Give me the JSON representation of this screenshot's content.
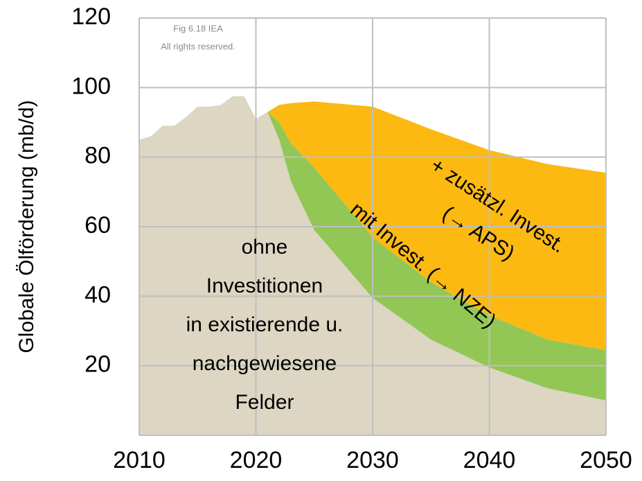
{
  "chart_data": {
    "type": "stacked_area",
    "ylabel": "Globale Ölförderung (mb/d)",
    "note": [
      "Fig 6.18 IEA",
      "All rights reserved."
    ],
    "x": [
      2010,
      2011,
      2012,
      2013,
      2014,
      2015,
      2016,
      2017,
      2018,
      2019,
      2020,
      2021,
      2022,
      2023,
      2025,
      2030,
      2035,
      2040,
      2045,
      2050
    ],
    "series": [
      {
        "name": "ohne Investitionen in existierende u. nachgewiesene Felder",
        "color": "#dcd6c2",
        "values": [
          85,
          86,
          89,
          89,
          91.5,
          94.5,
          94.5,
          95,
          97.5,
          97.5,
          91,
          93,
          85,
          73,
          59,
          39.5,
          27.5,
          19.5,
          13.5,
          10
        ]
      },
      {
        "name": "mit Invest.  (→ NZE)",
        "color": "#92c756",
        "values": [
          null,
          null,
          null,
          null,
          null,
          null,
          null,
          null,
          null,
          null,
          null,
          0,
          5,
          11,
          18,
          17.5,
          16.5,
          15,
          14,
          14.5
        ]
      },
      {
        "name": "+ zusätzl. Invest. (→ APS)",
        "color": "#fbb912",
        "values": [
          null,
          null,
          null,
          null,
          null,
          null,
          null,
          null,
          null,
          null,
          null,
          0,
          5,
          11.5,
          19,
          37.5,
          44,
          47.5,
          50.5,
          51
        ]
      }
    ],
    "annotations": [
      {
        "lines": [
          "ohne",
          "Investitionen",
          "in existierende u.",
          "nachgewiesene",
          "Felder"
        ]
      },
      {
        "lines": [
          "+ zusätzl. Invest.",
          "(→ APS)"
        ]
      },
      {
        "lines": [
          "mit Invest.  (→ NZE)"
        ]
      }
    ],
    "xlim": [
      2010,
      2050
    ],
    "xticks": [
      2010,
      2020,
      2030,
      2040,
      2050
    ],
    "ylim": [
      0,
      120
    ],
    "yticks": [
      20,
      40,
      60,
      80,
      100,
      120
    ],
    "grid": true
  }
}
